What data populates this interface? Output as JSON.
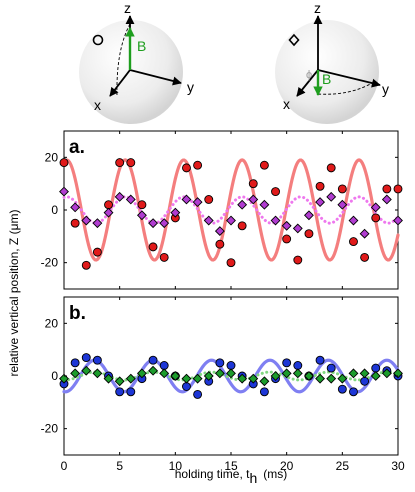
{
  "insets": [
    {
      "marker": "circle",
      "axes": {
        "z": "z",
        "y": "y",
        "x": "x"
      },
      "field_label": "B",
      "angle_label": ""
    },
    {
      "marker": "diamond",
      "axes": {
        "z": "z",
        "y": "y",
        "x": "x"
      },
      "field_label": "B",
      "angle_label": "ϕ"
    }
  ],
  "shared": {
    "ylabel": "relative vertical position,  Z (μm)",
    "xlabel": "holding time, t",
    "xlabel_subscript": "h",
    "xlabel_unit": "(ms)",
    "xticks": [
      0,
      5,
      10,
      15,
      20,
      25,
      30
    ],
    "yticks": [
      20,
      0,
      -20
    ],
    "xlim": [
      0,
      30
    ],
    "ylim": [
      -30,
      30
    ]
  },
  "colors": {
    "red_fit": "#f47e7e",
    "red_marker": "#e01a1a",
    "purple_fit": "#ee78ee",
    "purple_marker": "#b03cd0",
    "blue_fit": "#7f7ff2",
    "blue_marker": "#1d36d6",
    "green_fit": "#82d782",
    "green_marker": "#1c9c2c",
    "field_arrow": "#1e9e1e"
  },
  "chart_data": [
    {
      "type": "scatter",
      "panel_label": "a.",
      "xlim": [
        0,
        30
      ],
      "ylim": [
        -30,
        30
      ],
      "series": [
        {
          "marker": "circle",
          "color": "red",
          "x": [
            0,
            1,
            2,
            3,
            4,
            5,
            6,
            7,
            8,
            9,
            10,
            11,
            12,
            13,
            14,
            15,
            16,
            17,
            18,
            19,
            20,
            21,
            22,
            23,
            24,
            25,
            26,
            27,
            28,
            29,
            30
          ],
          "y": [
            18,
            -5,
            -21,
            -16,
            2,
            18,
            18,
            2,
            -14,
            -18,
            -3,
            16,
            17,
            4,
            -13,
            -20,
            -6,
            10,
            17,
            7,
            -11,
            -19,
            -9,
            9,
            16,
            8,
            -12,
            -18,
            -3,
            8,
            8
          ]
        },
        {
          "marker": "diamond",
          "color": "purple",
          "x": [
            0,
            1,
            2,
            3,
            4,
            5,
            6,
            7,
            8,
            9,
            10,
            11,
            12,
            13,
            14,
            15,
            16,
            17,
            18,
            19,
            20,
            21,
            22,
            23,
            24,
            25,
            26,
            27,
            28,
            29,
            30
          ],
          "y": [
            7,
            1,
            -4,
            -5,
            -1,
            5,
            4,
            -2,
            -5,
            -5,
            -1,
            4,
            3,
            -4,
            -8,
            -4,
            2,
            4,
            2,
            -4,
            -6,
            -7,
            -2,
            3,
            5,
            2,
            -4,
            -9,
            1,
            4,
            -4
          ]
        }
      ],
      "fits": [
        {
          "color": "red",
          "style": "solid",
          "A": 19,
          "period_ms": 5.25,
          "peak_ms": 5.5
        },
        {
          "color": "purple",
          "style": "dotted",
          "A": 5,
          "period_ms": 5.25,
          "peak_ms": 5.5
        }
      ]
    },
    {
      "type": "scatter",
      "panel_label": "b.",
      "xlim": [
        0,
        30
      ],
      "ylim": [
        -30,
        30
      ],
      "series": [
        {
          "marker": "circle",
          "color": "blue",
          "x": [
            0,
            1,
            2,
            3,
            4,
            5,
            6,
            7,
            8,
            9,
            10,
            11,
            12,
            13,
            14,
            15,
            16,
            17,
            18,
            19,
            20,
            21,
            22,
            23,
            24,
            25,
            26,
            27,
            28,
            29,
            30
          ],
          "y": [
            -3,
            5,
            7,
            6,
            0,
            -6,
            -6,
            -1,
            6,
            4,
            0,
            -4,
            -7,
            -2,
            5,
            4,
            0,
            -3,
            -6,
            -1,
            5,
            4,
            0,
            6,
            3,
            -5,
            -6,
            -2,
            3,
            2,
            0
          ]
        },
        {
          "marker": "diamond",
          "color": "green",
          "x": [
            0,
            1,
            2,
            3,
            4,
            5,
            6,
            7,
            8,
            9,
            10,
            11,
            12,
            13,
            14,
            15,
            16,
            17,
            18,
            19,
            20,
            21,
            22,
            23,
            24,
            25,
            26,
            27,
            28,
            29,
            30
          ],
          "y": [
            -1,
            1,
            2,
            1,
            -1,
            -2,
            -1,
            1,
            2,
            1,
            0,
            -1,
            -1,
            0,
            1,
            1,
            -1,
            -1,
            -2,
            0,
            1,
            1,
            0,
            -1,
            -1,
            -1,
            1,
            1,
            0,
            1,
            1
          ]
        }
      ],
      "fits": [
        {
          "color": "blue",
          "style": "solid",
          "A": 6,
          "period_ms": 5.25,
          "peak_ms": 2.75
        },
        {
          "color": "green",
          "style": "dotted",
          "A": 1.5,
          "period_ms": 5.25,
          "peak_ms": 2.75
        }
      ]
    }
  ]
}
